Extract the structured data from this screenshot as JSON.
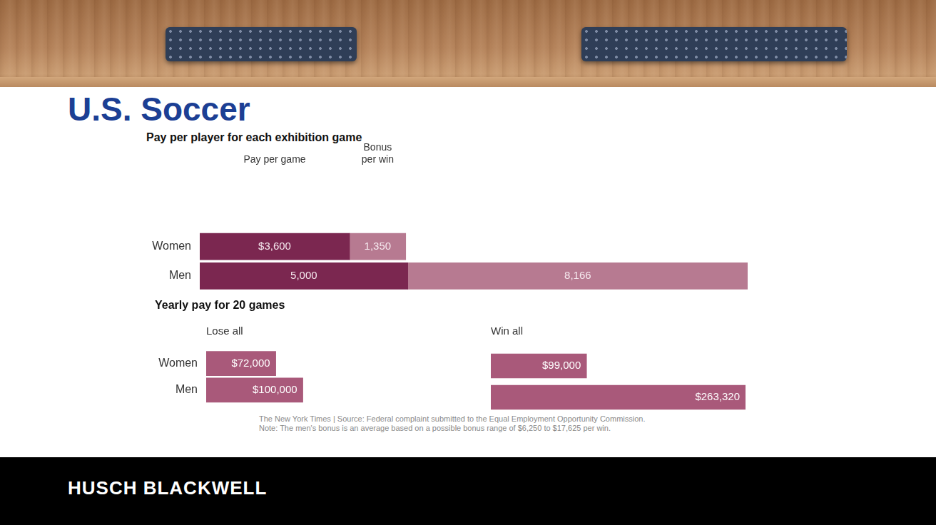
{
  "slide_title": "U.S. Soccer",
  "footer": "HUSCH BLACKWELL",
  "chart_data": [
    {
      "type": "bar",
      "orientation": "horizontal",
      "stacked": true,
      "title": "Pay per player for each exhibition game",
      "categories": [
        "Women",
        "Men"
      ],
      "series": [
        {
          "name": "Pay per game",
          "color": "#7b2750",
          "values": [
            3600,
            5000
          ],
          "value_labels": [
            "$3,600",
            "5,000"
          ]
        },
        {
          "name": "Bonus per win",
          "color": "#b77a91",
          "values": [
            1350,
            8166
          ],
          "value_labels": [
            "1,350",
            "8,166"
          ]
        }
      ],
      "xlim": [
        0,
        13166
      ],
      "grid": false,
      "data_labels": true,
      "tick_labels": "y"
    },
    {
      "type": "bar",
      "orientation": "horizontal",
      "title": "Yearly pay for 20 games",
      "categories": [
        "Women",
        "Men"
      ],
      "series": [
        {
          "name": "Lose all",
          "color": "#a9597a",
          "values": [
            72000,
            100000
          ],
          "value_labels": [
            "$72,000",
            "$100,000"
          ]
        },
        {
          "name": "Win all",
          "color": "#a9597a",
          "values": [
            99000,
            263320
          ],
          "value_labels": [
            "$99,000",
            "$263,320"
          ]
        }
      ],
      "xlim": [
        0,
        263320
      ],
      "grid": false,
      "data_labels": true,
      "tick_labels": "y",
      "note": "The New York Times | Source: Federal complaint submitted to the Equal Employment Opportunity Commission. Note: The men's bonus is an average based on a possible bonus range of $6,250 to $17,625 per win."
    }
  ]
}
